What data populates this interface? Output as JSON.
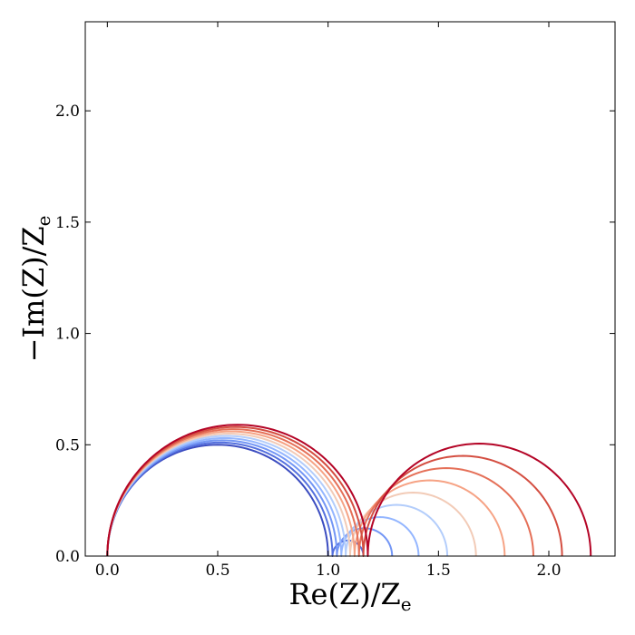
{
  "chart_data": {
    "type": "line",
    "title": "",
    "xlabel": {
      "main": "Re(Z)/Z",
      "sub": "e"
    },
    "ylabel": {
      "main": "−Im(Z)/Z",
      "sub": "e"
    },
    "xlim": [
      -0.1,
      2.3
    ],
    "ylim": [
      0.0,
      2.4
    ],
    "xticks": [
      0.0,
      0.5,
      1.0,
      1.5,
      2.0
    ],
    "yticks": [
      0.0,
      0.5,
      1.0,
      1.5,
      2.0
    ],
    "xtick_labels": [
      "0.0",
      "0.5",
      "1.0",
      "1.5",
      "2.0"
    ],
    "ytick_labels": [
      "0.0",
      "0.5",
      "1.0",
      "1.5",
      "2.0"
    ],
    "grid": false,
    "legend": "none",
    "colormap": "coolwarm",
    "series": [
      {
        "color": "#3b4cc0",
        "arcs": [
          {
            "x0": 0.0,
            "x1": 1.0
          }
        ]
      },
      {
        "color": "#5470de",
        "arcs": [
          {
            "x0": 0.0,
            "x1": 1.02
          },
          {
            "x0": 1.02,
            "x1": 1.16
          }
        ]
      },
      {
        "color": "#7396f5",
        "arcs": [
          {
            "x0": 0.0,
            "x1": 1.04
          },
          {
            "x0": 1.04,
            "x1": 1.29
          }
        ]
      },
      {
        "color": "#94b6ff",
        "arcs": [
          {
            "x0": 0.0,
            "x1": 1.06
          },
          {
            "x0": 1.06,
            "x1": 1.41
          }
        ]
      },
      {
        "color": "#b3cdfb",
        "arcs": [
          {
            "x0": 0.0,
            "x1": 1.08
          },
          {
            "x0": 1.08,
            "x1": 1.54
          }
        ]
      },
      {
        "color": "#f2cbb7",
        "arcs": [
          {
            "x0": 0.0,
            "x1": 1.1
          },
          {
            "x0": 1.1,
            "x1": 1.67
          }
        ]
      },
      {
        "color": "#f6a385",
        "arcs": [
          {
            "x0": 0.0,
            "x1": 1.12
          },
          {
            "x0": 1.12,
            "x1": 1.8
          }
        ]
      },
      {
        "color": "#e57058",
        "arcs": [
          {
            "x0": 0.0,
            "x1": 1.14
          },
          {
            "x0": 1.14,
            "x1": 1.93
          }
        ]
      },
      {
        "color": "#d44e41",
        "arcs": [
          {
            "x0": 0.0,
            "x1": 1.16
          },
          {
            "x0": 1.16,
            "x1": 2.06
          }
        ]
      },
      {
        "color": "#b40426",
        "arcs": [
          {
            "x0": 0.0,
            "x1": 1.18
          },
          {
            "x0": 1.18,
            "x1": 2.19
          }
        ]
      }
    ]
  }
}
